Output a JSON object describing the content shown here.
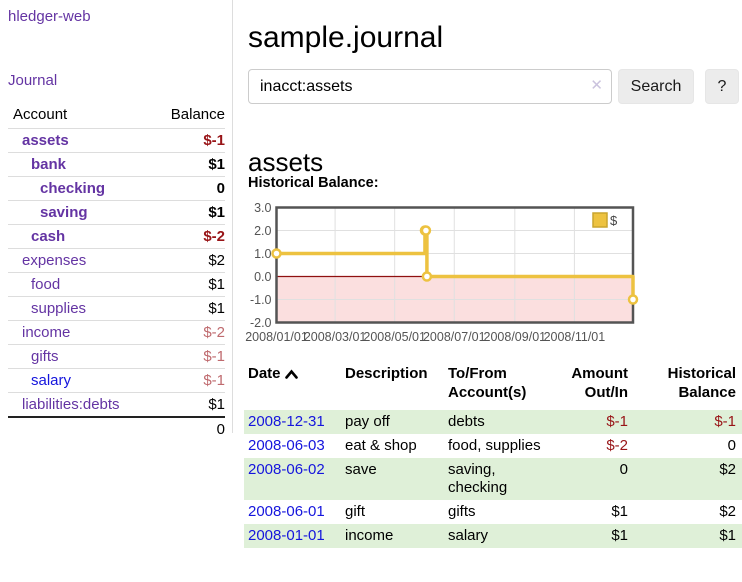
{
  "colors": {
    "link_purple": "#6434a3",
    "link_blue": "#1515dd",
    "negative_strong": "#981417",
    "negative_soft": "#bf6a6e",
    "row_stripe_green": "#dff0d8",
    "chart_line_yellow": "#edc240",
    "chart_negative_region_pink": "#fbdfdf",
    "chart_zero_line_red": "#8f1010"
  },
  "app_title": "hledger-web",
  "sidebar": {
    "journal_link": "Journal",
    "table": {
      "account_header": "Account",
      "balance_header": "Balance",
      "rows": [
        {
          "name": "assets",
          "balance": "$-1",
          "depth": 0,
          "bold": true,
          "neg": "strong"
        },
        {
          "name": "bank",
          "balance": "$1",
          "depth": 1,
          "bold": true
        },
        {
          "name": "checking",
          "balance": "0",
          "depth": 2,
          "bold": true
        },
        {
          "name": "saving",
          "balance": "$1",
          "depth": 2,
          "bold": true
        },
        {
          "name": "cash",
          "balance": "$-2",
          "depth": 1,
          "bold": true,
          "neg": "strong"
        },
        {
          "name": "expenses",
          "balance": "$2",
          "depth": 0
        },
        {
          "name": "food",
          "balance": "$1",
          "depth": 1
        },
        {
          "name": "supplies",
          "balance": "$1",
          "depth": 1
        },
        {
          "name": "income",
          "balance": "$-2",
          "depth": 0,
          "neg": "soft"
        },
        {
          "name": "gifts",
          "balance": "$-1",
          "depth": 1,
          "neg": "soft"
        },
        {
          "name": "salary",
          "balance": "$-1",
          "depth": 1,
          "neg": "soft",
          "link": "blue"
        },
        {
          "name": "liabilities:debts",
          "balance": "$1",
          "depth": 0
        }
      ],
      "total": "0"
    }
  },
  "main": {
    "page_title": "sample.journal",
    "search": {
      "value": "inacct:assets",
      "clear_icon": "✕",
      "search_button": "Search",
      "help_button": "?"
    },
    "account_heading": "assets",
    "chart_label": "Historical Balance:"
  },
  "chart_data": {
    "type": "line",
    "step": true,
    "title": "Historical Balance",
    "legend_position": "top-right",
    "series": [
      {
        "name": "$",
        "color": "#edc240",
        "x": [
          "2008-01-01",
          "2008-06-01",
          "2008-06-02",
          "2008-06-03",
          "2008-12-31"
        ],
        "values": [
          1,
          2,
          2,
          0,
          -1
        ]
      }
    ],
    "ylim": [
      -2,
      3
    ],
    "y_ticks": [
      {
        "label": "3.0",
        "value": 3
      },
      {
        "label": "2.0",
        "value": 2
      },
      {
        "label": "1.0",
        "value": 1
      },
      {
        "label": "0.0",
        "value": 0
      },
      {
        "label": "-1.0",
        "value": -1
      },
      {
        "label": "-2.0",
        "value": -2
      }
    ],
    "x_ticks": [
      {
        "label": "2008/01/01",
        "date": "2008-01-01"
      },
      {
        "label": "2008/03/01",
        "date": "2008-03-01"
      },
      {
        "label": "2008/05/01",
        "date": "2008-05-01"
      },
      {
        "label": "2008/07/01",
        "date": "2008-07-01"
      },
      {
        "label": "2008/09/01",
        "date": "2008-09-01"
      },
      {
        "label": "2008/11/01",
        "date": "2008-11-01"
      }
    ],
    "x_range": [
      "2008-01-01",
      "2008-12-31"
    ],
    "grid": true,
    "negative_region_shaded": true
  },
  "register": {
    "headers": {
      "date": "Date",
      "description": "Description",
      "account_line1": "To/From",
      "account_line2": "Account(s)",
      "amount_line1": "Amount",
      "amount_line2": "Out/In",
      "balance_line1": "Historical",
      "balance_line2": "Balance"
    },
    "sort": {
      "column": "date",
      "direction": "ascending"
    },
    "rows": [
      {
        "date": "2008-12-31",
        "description": "pay off",
        "accounts": "debts",
        "amount": "$-1",
        "amount_neg": true,
        "balance": "$-1",
        "balance_neg": true,
        "stripe": true
      },
      {
        "date": "2008-06-03",
        "description": "eat & shop",
        "accounts": "food, supplies",
        "amount": "$-2",
        "amount_neg": true,
        "balance": "0",
        "balance_neg": false,
        "stripe": false
      },
      {
        "date": "2008-06-02",
        "description": "save",
        "accounts": "saving, checking",
        "amount": "0",
        "amount_neg": false,
        "balance": "$2",
        "balance_neg": false,
        "stripe": true
      },
      {
        "date": "2008-06-01",
        "description": "gift",
        "accounts": "gifts",
        "amount": "$1",
        "amount_neg": false,
        "balance": "$2",
        "balance_neg": false,
        "stripe": false
      },
      {
        "date": "2008-01-01",
        "description": "income",
        "accounts": "salary",
        "amount": "$1",
        "amount_neg": false,
        "balance": "$1",
        "balance_neg": false,
        "stripe": true
      }
    ]
  }
}
